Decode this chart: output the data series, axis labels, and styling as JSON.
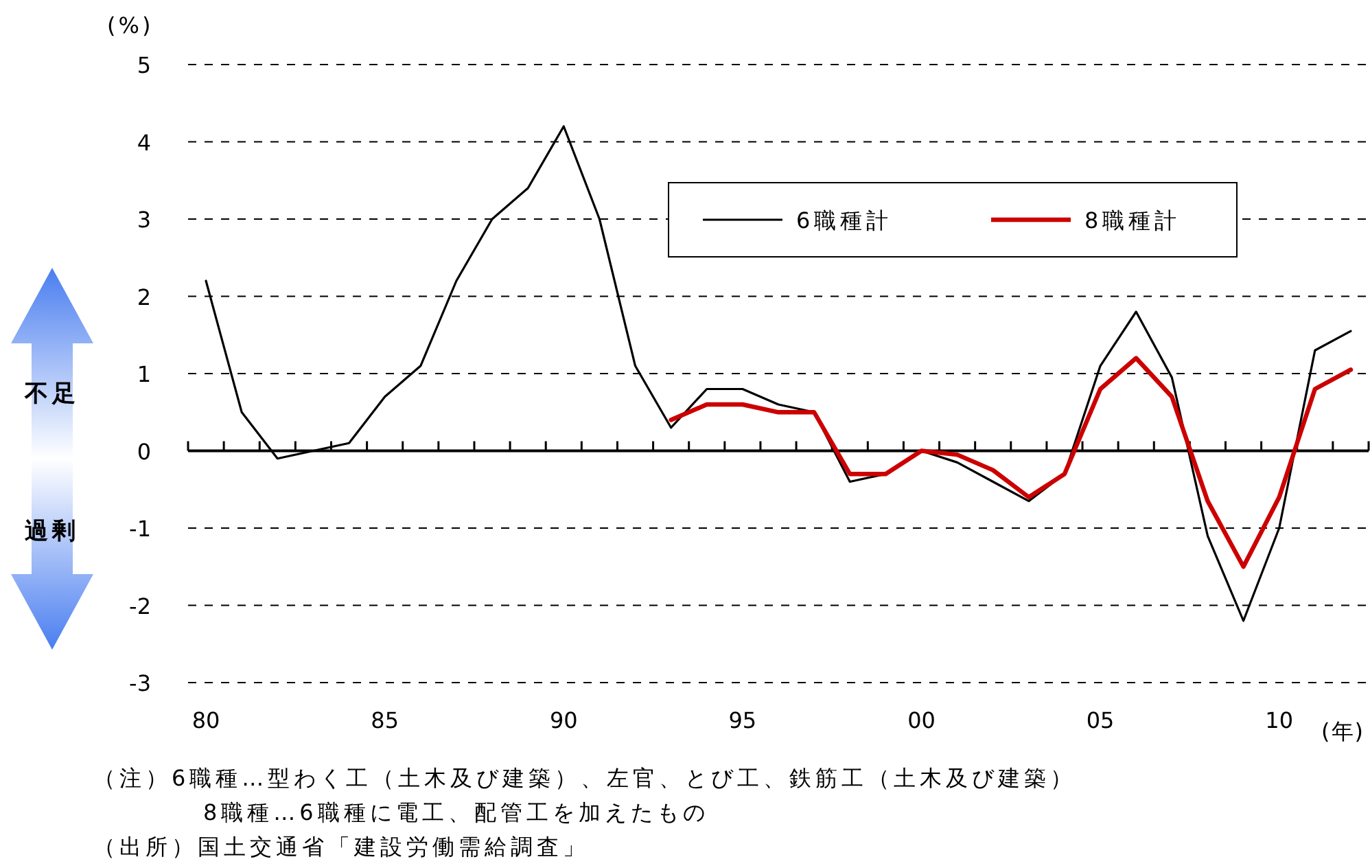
{
  "chart_data": {
    "type": "line",
    "ylabel": "(%)",
    "xlabel": "(年)",
    "categories": [
      "80",
      null,
      null,
      null,
      null,
      "85",
      null,
      null,
      null,
      null,
      "90",
      null,
      null,
      null,
      null,
      "95",
      null,
      null,
      null,
      null,
      "00",
      null,
      null,
      null,
      null,
      "05",
      null,
      null,
      null,
      null,
      "10",
      null,
      null
    ],
    "series": [
      {
        "name": "6職種計",
        "color": "#000000",
        "values": [
          2.2,
          0.5,
          -0.1,
          0.0,
          0.1,
          0.7,
          1.1,
          2.2,
          3.0,
          3.4,
          4.2,
          3.0,
          1.1,
          0.3,
          0.8,
          0.8,
          0.6,
          0.5,
          -0.4,
          -0.3,
          0.0,
          -0.15,
          -0.4,
          -0.65,
          -0.3,
          1.1,
          1.8,
          0.95,
          -1.1,
          -2.2,
          -1.0,
          1.3,
          1.55
        ]
      },
      {
        "name": "8職種計",
        "color": "#cc0000",
        "values": [
          null,
          null,
          null,
          null,
          null,
          null,
          null,
          null,
          null,
          null,
          null,
          null,
          null,
          0.4,
          0.6,
          0.6,
          0.5,
          0.5,
          -0.3,
          -0.3,
          0.0,
          -0.05,
          -0.25,
          -0.6,
          -0.3,
          0.8,
          1.2,
          0.7,
          -0.65,
          -1.5,
          -0.6,
          0.8,
          1.05
        ]
      }
    ],
    "ylim": [
      -3,
      5
    ],
    "yticks": [
      -3,
      -2,
      -1,
      0,
      1,
      2,
      3,
      4,
      5
    ],
    "grid": "y",
    "legend": "top right",
    "marker": "none",
    "line_style": "solid",
    "annotations": [
      "不足",
      "過剰",
      "（注）6職種…型わく工（土木及び建築）、左官、とび工、鉄筋工（土木及び建築）",
      "8職種…6職種に電工、配管工を加えたもの",
      "（出所）国土交通省「建設労働需給調査」"
    ]
  }
}
